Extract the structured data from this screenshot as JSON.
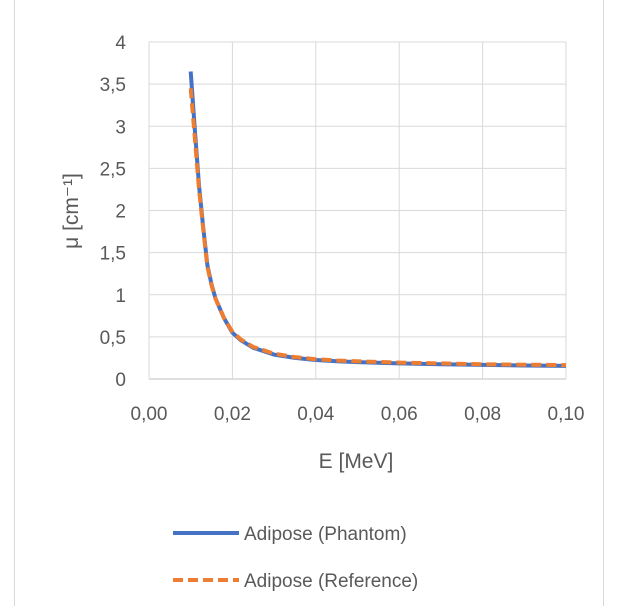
{
  "chart_data": {
    "type": "line",
    "title": "",
    "xlabel": "E [MeV]",
    "ylabel": "μ [cm⁻¹]",
    "xlim": [
      0,
      0.1
    ],
    "ylim": [
      0,
      4
    ],
    "x_ticks": [
      "0,00",
      "0,02",
      "0,04",
      "0,06",
      "0,08",
      "0,10"
    ],
    "y_ticks": [
      "0",
      "0,5",
      "1",
      "1,5",
      "2",
      "2,5",
      "3",
      "3,5",
      "4"
    ],
    "grid": true,
    "legend_position": "bottom",
    "series": [
      {
        "name": "Adipose (Phantom)",
        "color": "#4472c4",
        "style": "solid",
        "x": [
          0.01,
          0.011,
          0.012,
          0.013,
          0.014,
          0.015,
          0.016,
          0.018,
          0.02,
          0.022,
          0.025,
          0.03,
          0.035,
          0.04,
          0.045,
          0.05,
          0.06,
          0.07,
          0.08,
          0.09,
          0.1
        ],
        "y": [
          3.65,
          2.95,
          2.3,
          1.8,
          1.35,
          1.12,
          0.95,
          0.72,
          0.55,
          0.46,
          0.37,
          0.29,
          0.25,
          0.225,
          0.21,
          0.2,
          0.185,
          0.175,
          0.167,
          0.16,
          0.155
        ]
      },
      {
        "name": "Adipose (Reference)",
        "color": "#ed7d31",
        "style": "dashed",
        "x": [
          0.01,
          0.011,
          0.012,
          0.013,
          0.014,
          0.015,
          0.016,
          0.018,
          0.02,
          0.022,
          0.025,
          0.03,
          0.035,
          0.04,
          0.045,
          0.05,
          0.06,
          0.07,
          0.08,
          0.09,
          0.1
        ],
        "y": [
          3.45,
          2.85,
          2.25,
          1.78,
          1.33,
          1.11,
          0.95,
          0.72,
          0.56,
          0.47,
          0.38,
          0.3,
          0.26,
          0.235,
          0.22,
          0.21,
          0.195,
          0.185,
          0.175,
          0.17,
          0.165
        ]
      }
    ]
  }
}
